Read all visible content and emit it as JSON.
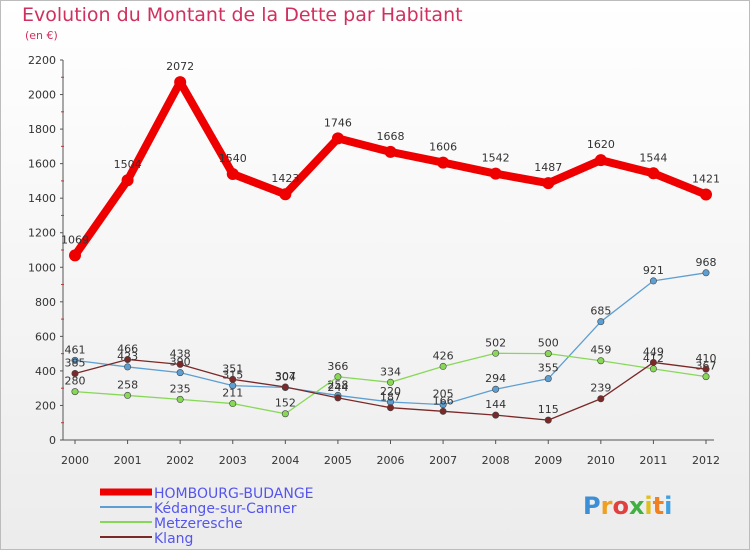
{
  "title": "Evolution du Montant de la Dette par Habitant",
  "unit": "(en €)",
  "logo_letters": [
    {
      "ch": "P",
      "color": "#3a8fd6"
    },
    {
      "ch": "r",
      "color": "#f0a020"
    },
    {
      "ch": "o",
      "color": "#e04040"
    },
    {
      "ch": "x",
      "color": "#40b040"
    },
    {
      "ch": "i",
      "color": "#e0c020"
    },
    {
      "ch": "t",
      "color": "#f08020"
    },
    {
      "ch": "i",
      "color": "#40a0e0"
    }
  ],
  "chart_data": {
    "type": "line",
    "x": [
      "2000",
      "2001",
      "2002",
      "2003",
      "2004",
      "2005",
      "2006",
      "2007",
      "2008",
      "2009",
      "2010",
      "2011",
      "2012"
    ],
    "ylim": [
      0,
      2200
    ],
    "yticks": [
      "0",
      "200",
      "400",
      "600",
      "800",
      "1000",
      "1200",
      "1400",
      "1600",
      "1800",
      "2000",
      "2200"
    ],
    "grid": false,
    "legend_position": "bottom-left",
    "series": [
      {
        "name": "HOMBOURG-BUDANGE",
        "color": "#ee0000",
        "values": [
          1069,
          1504,
          2072,
          1540,
          1423,
          1746,
          1668,
          1606,
          1542,
          1487,
          1620,
          1544,
          1421
        ],
        "labels": [
          "1069",
          "1504",
          "2072",
          "1540",
          "1423",
          "1746",
          "1668",
          "1606",
          "1542",
          "1487",
          "1620",
          "1544",
          "1421"
        ]
      },
      {
        "name": "Kédange-sur-Canner",
        "color": "#5d9fd3",
        "values": [
          461,
          423,
          390,
          315,
          304,
          258,
          220,
          205,
          294,
          355,
          685,
          921,
          968
        ],
        "labels": [
          "461",
          "423",
          "390",
          "315",
          "304",
          "258",
          "220",
          "205",
          "294",
          "355",
          "685",
          "921",
          "968"
        ]
      },
      {
        "name": "Metzeresche",
        "color": "#88d858",
        "values": [
          280,
          258,
          235,
          211,
          152,
          366,
          334,
          426,
          502,
          500,
          459,
          412,
          367
        ],
        "labels": [
          "280",
          "258",
          "235",
          "211",
          "152",
          "366",
          "334",
          "426",
          "502",
          "500",
          "459",
          "412",
          "367"
        ]
      },
      {
        "name": "Klang",
        "color": "#7a2828",
        "values": [
          385,
          466,
          438,
          351,
          307,
          244,
          187,
          166,
          144,
          115,
          239,
          449,
          410
        ],
        "labels": [
          "385",
          "466",
          "438",
          "351",
          "307",
          "244",
          "187",
          "166",
          "144",
          "115",
          "239",
          "449",
          "410"
        ]
      }
    ]
  }
}
